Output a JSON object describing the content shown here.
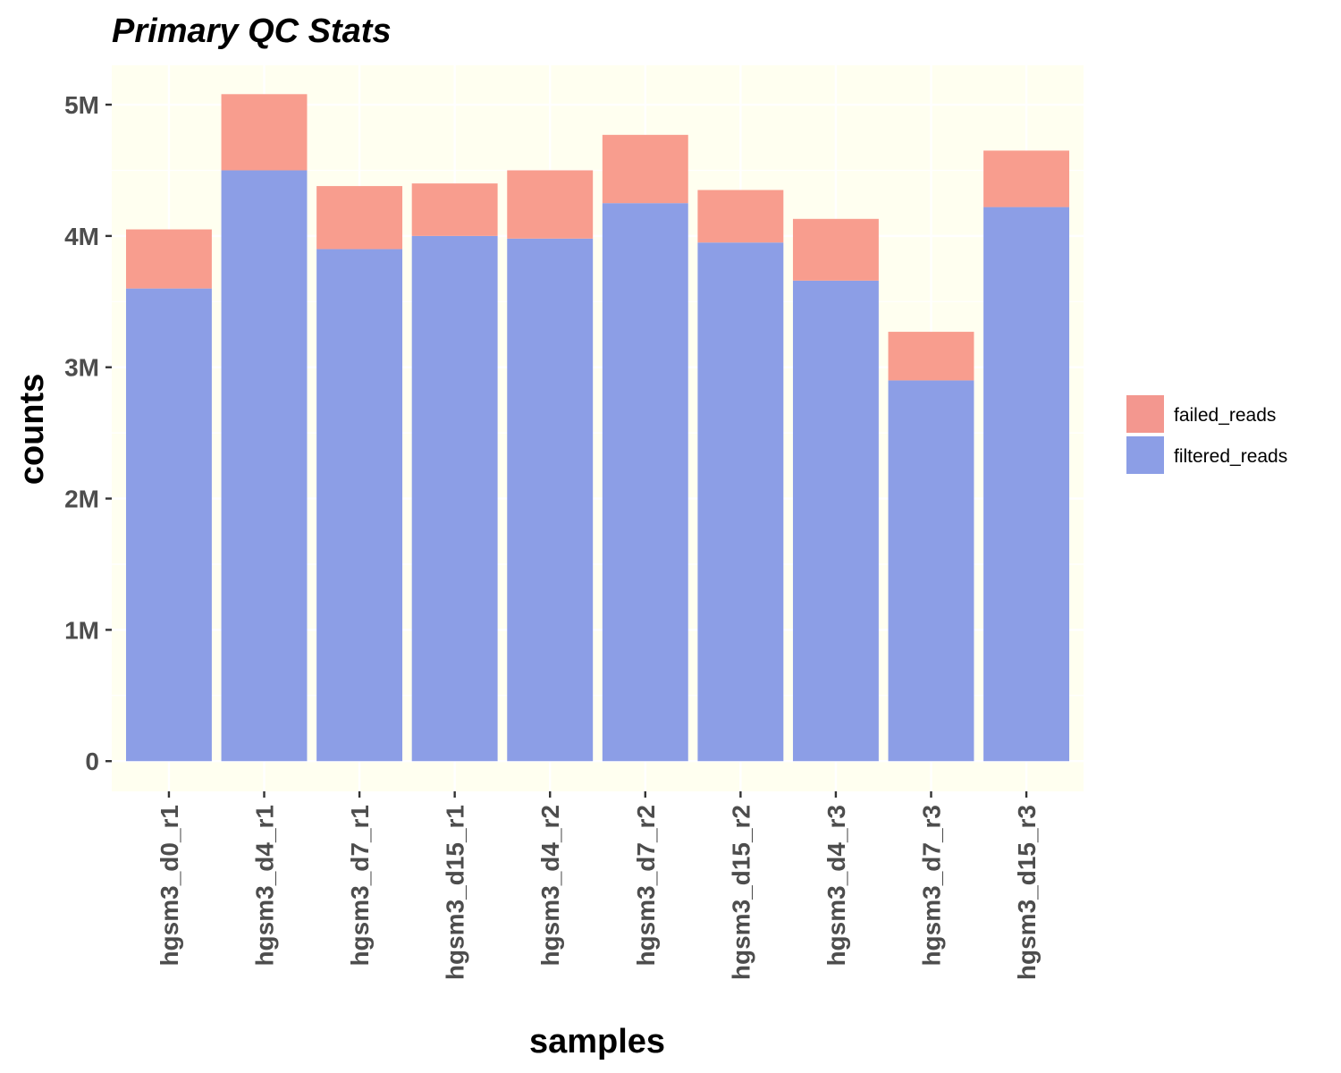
{
  "chart_data": {
    "type": "bar",
    "stacked": true,
    "title": "Primary QC Stats",
    "xlabel": "samples",
    "ylabel": "counts",
    "ylim": [
      -230000,
      5300000
    ],
    "yticks": [
      0,
      1000000,
      2000000,
      3000000,
      4000000,
      5000000
    ],
    "ytick_labels": [
      "0",
      "1M",
      "2M",
      "3M",
      "4M",
      "5M"
    ],
    "categories": [
      "hgsm3_d0_r1",
      "hgsm3_d4_r1",
      "hgsm3_d7_r1",
      "hgsm3_d15_r1",
      "hgsm3_d4_r2",
      "hgsm3_d7_r2",
      "hgsm3_d15_r2",
      "hgsm3_d4_r3",
      "hgsm3_d7_r3",
      "hgsm3_d15_r3"
    ],
    "series": [
      {
        "name": "filtered_reads",
        "color": "#8c9ee6",
        "values": [
          3600000,
          4500000,
          3900000,
          4000000,
          3980000,
          4250000,
          3950000,
          3660000,
          2900000,
          4220000
        ]
      },
      {
        "name": "failed_reads",
        "color": "#f89d8e",
        "values": [
          450000,
          580000,
          480000,
          400000,
          520000,
          520000,
          400000,
          470000,
          370000,
          430000
        ]
      }
    ],
    "legend": {
      "position": "right",
      "items": [
        {
          "label": "failed_reads",
          "color": "#f3978f"
        },
        {
          "label": "filtered_reads",
          "color": "#8c9ee6"
        }
      ]
    },
    "grid": true,
    "panel_background": "#fffff0"
  }
}
